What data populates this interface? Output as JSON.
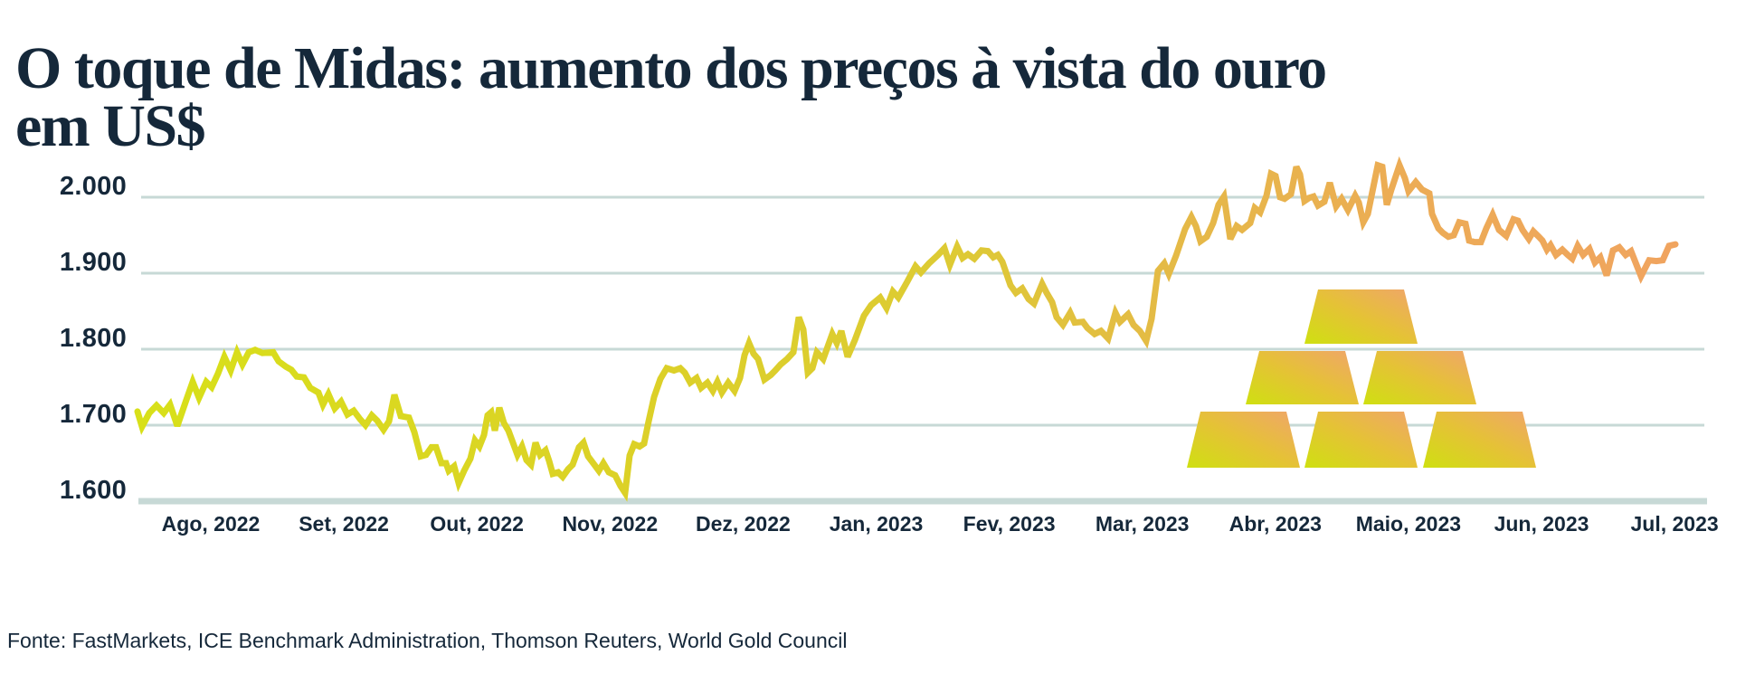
{
  "title": {
    "line1": "O toque de Midas: aumento dos preços à vista do ouro",
    "line2": "em US$",
    "full": "O toque de Midas: aumento dos preços à vista do ouro em US$"
  },
  "source_note": "Fonte: FastMarkets, ICE Benchmark Administration, Thomson Reuters, World Gold Council",
  "colors": {
    "navy": "#15283a",
    "gridline": "#c7d9d6",
    "background": "#ffffff",
    "line_start": "#d8e019",
    "line_mid1": "#dcd028",
    "line_mid2": "#e4bb45",
    "line_end": "#f0a45f",
    "bar_lime": "#cfe011",
    "bar_gold": "#e5c236",
    "bar_orange": "#f0a56b"
  },
  "chart_data": {
    "type": "line",
    "title": "O toque de Midas: aumento dos preços à vista do ouro em US$",
    "xlabel": "",
    "ylabel": "",
    "grid": true,
    "legend": false,
    "ylim": [
      1600,
      2060
    ],
    "y_ticks": [
      "2.000",
      "1.900",
      "1.800",
      "1.700",
      "1.600"
    ],
    "y_tick_values": [
      2000,
      1900,
      1800,
      1700,
      1600
    ],
    "x_labels": [
      "Ago, 2022",
      "Set, 2022",
      "Out, 2022",
      "Nov, 2022",
      "Dez, 2022",
      "Jan, 2023",
      "Fev, 2023",
      "Mar, 2023",
      "Abr, 2023",
      "Maio, 2023",
      "Jun, 2023",
      "Jul, 2023"
    ],
    "series": [
      {
        "points": [
          [
            152,
            1718
          ],
          [
            157,
            1698
          ],
          [
            165,
            1716
          ],
          [
            173,
            1726
          ],
          [
            181,
            1716
          ],
          [
            188,
            1727
          ],
          [
            196,
            1699
          ],
          [
            205,
            1730
          ],
          [
            213,
            1757
          ],
          [
            220,
            1736
          ],
          [
            228,
            1757
          ],
          [
            234,
            1750
          ],
          [
            241,
            1768
          ],
          [
            248,
            1790
          ],
          [
            255,
            1772
          ],
          [
            262,
            1796
          ],
          [
            268,
            1780
          ],
          [
            275,
            1796
          ],
          [
            282,
            1799
          ],
          [
            290,
            1795
          ],
          [
            302,
            1796
          ],
          [
            308,
            1784
          ],
          [
            316,
            1777
          ],
          [
            322,
            1773
          ],
          [
            328,
            1764
          ],
          [
            336,
            1763
          ],
          [
            343,
            1749
          ],
          [
            352,
            1743
          ],
          [
            357,
            1727
          ],
          [
            363,
            1741
          ],
          [
            370,
            1722
          ],
          [
            377,
            1731
          ],
          [
            384,
            1714
          ],
          [
            391,
            1719
          ],
          [
            398,
            1708
          ],
          [
            404,
            1700
          ],
          [
            411,
            1713
          ],
          [
            417,
            1706
          ],
          [
            424,
            1694
          ],
          [
            430,
            1705
          ],
          [
            436,
            1740
          ],
          [
            443,
            1712
          ],
          [
            452,
            1710
          ],
          [
            458,
            1691
          ],
          [
            465,
            1659
          ],
          [
            471,
            1661
          ],
          [
            477,
            1671
          ],
          [
            482,
            1671
          ],
          [
            488,
            1650
          ],
          [
            493,
            1650
          ],
          [
            496,
            1640
          ],
          [
            502,
            1646
          ],
          [
            507,
            1624
          ],
          [
            513,
            1640
          ],
          [
            520,
            1656
          ],
          [
            525,
            1680
          ],
          [
            530,
            1672
          ],
          [
            535,
            1687
          ],
          [
            539,
            1713
          ],
          [
            543,
            1717
          ],
          [
            547,
            1693
          ],
          [
            552,
            1723
          ],
          [
            557,
            1703
          ],
          [
            562,
            1693
          ],
          [
            567,
            1677
          ],
          [
            572,
            1661
          ],
          [
            577,
            1672
          ],
          [
            582,
            1654
          ],
          [
            587,
            1648
          ],
          [
            592,
            1677
          ],
          [
            597,
            1661
          ],
          [
            603,
            1667
          ],
          [
            607,
            1653
          ],
          [
            611,
            1636
          ],
          [
            617,
            1638
          ],
          [
            622,
            1632
          ],
          [
            628,
            1642
          ],
          [
            633,
            1648
          ],
          [
            640,
            1671
          ],
          [
            645,
            1677
          ],
          [
            650,
            1659
          ],
          [
            657,
            1648
          ],
          [
            662,
            1640
          ],
          [
            667,
            1650
          ],
          [
            673,
            1638
          ],
          [
            680,
            1634
          ],
          [
            686,
            1620
          ],
          [
            691,
            1611
          ],
          [
            696,
            1660
          ],
          [
            701,
            1675
          ],
          [
            707,
            1672
          ],
          [
            712,
            1676
          ],
          [
            717,
            1705
          ],
          [
            723,
            1737
          ],
          [
            730,
            1761
          ],
          [
            737,
            1775
          ],
          [
            745,
            1772
          ],
          [
            752,
            1775
          ],
          [
            757,
            1769
          ],
          [
            763,
            1756
          ],
          [
            770,
            1762
          ],
          [
            775,
            1749
          ],
          [
            782,
            1756
          ],
          [
            788,
            1745
          ],
          [
            793,
            1757
          ],
          [
            798,
            1743
          ],
          [
            805,
            1756
          ],
          [
            812,
            1745
          ],
          [
            818,
            1762
          ],
          [
            823,
            1792
          ],
          [
            828,
            1808
          ],
          [
            833,
            1794
          ],
          [
            838,
            1787
          ],
          [
            845,
            1760
          ],
          [
            852,
            1766
          ],
          [
            857,
            1772
          ],
          [
            863,
            1780
          ],
          [
            870,
            1787
          ],
          [
            877,
            1796
          ],
          [
            883,
            1842
          ],
          [
            888,
            1826
          ],
          [
            893,
            1769
          ],
          [
            898,
            1775
          ],
          [
            903,
            1796
          ],
          [
            910,
            1787
          ],
          [
            920,
            1820
          ],
          [
            925,
            1808
          ],
          [
            930,
            1824
          ],
          [
            937,
            1790
          ],
          [
            945,
            1812
          ],
          [
            955,
            1844
          ],
          [
            963,
            1858
          ],
          [
            973,
            1868
          ],
          [
            980,
            1854
          ],
          [
            987,
            1876
          ],
          [
            993,
            1868
          ],
          [
            1003,
            1889
          ],
          [
            1012,
            1909
          ],
          [
            1018,
            1901
          ],
          [
            1027,
            1913
          ],
          [
            1037,
            1924
          ],
          [
            1044,
            1933
          ],
          [
            1050,
            1911
          ],
          [
            1058,
            1935
          ],
          [
            1064,
            1920
          ],
          [
            1070,
            1925
          ],
          [
            1077,
            1919
          ],
          [
            1085,
            1930
          ],
          [
            1092,
            1929
          ],
          [
            1098,
            1921
          ],
          [
            1103,
            1924
          ],
          [
            1108,
            1915
          ],
          [
            1117,
            1884
          ],
          [
            1123,
            1874
          ],
          [
            1130,
            1880
          ],
          [
            1137,
            1866
          ],
          [
            1143,
            1860
          ],
          [
            1152,
            1886
          ],
          [
            1157,
            1874
          ],
          [
            1163,
            1862
          ],
          [
            1168,
            1842
          ],
          [
            1175,
            1832
          ],
          [
            1183,
            1848
          ],
          [
            1188,
            1835
          ],
          [
            1197,
            1836
          ],
          [
            1202,
            1828
          ],
          [
            1210,
            1820
          ],
          [
            1217,
            1824
          ],
          [
            1225,
            1814
          ],
          [
            1233,
            1848
          ],
          [
            1238,
            1836
          ],
          [
            1247,
            1846
          ],
          [
            1253,
            1832
          ],
          [
            1260,
            1824
          ],
          [
            1267,
            1811
          ],
          [
            1273,
            1840
          ],
          [
            1280,
            1903
          ],
          [
            1287,
            1913
          ],
          [
            1292,
            1899
          ],
          [
            1300,
            1923
          ],
          [
            1310,
            1958
          ],
          [
            1317,
            1974
          ],
          [
            1322,
            1962
          ],
          [
            1327,
            1942
          ],
          [
            1334,
            1948
          ],
          [
            1341,
            1966
          ],
          [
            1347,
            1990
          ],
          [
            1353,
            2001
          ],
          [
            1360,
            1945
          ],
          [
            1367,
            1962
          ],
          [
            1373,
            1957
          ],
          [
            1382,
            1966
          ],
          [
            1387,
            1986
          ],
          [
            1393,
            1980
          ],
          [
            1400,
            2002
          ],
          [
            1405,
            2031
          ],
          [
            1410,
            2028
          ],
          [
            1415,
            2000
          ],
          [
            1420,
            1998
          ],
          [
            1427,
            2004
          ],
          [
            1433,
            2040
          ],
          [
            1437,
            2030
          ],
          [
            1442,
            1995
          ],
          [
            1447,
            1999
          ],
          [
            1452,
            2001
          ],
          [
            1457,
            1989
          ],
          [
            1464,
            1994
          ],
          [
            1470,
            2019
          ],
          [
            1477,
            1988
          ],
          [
            1483,
            1998
          ],
          [
            1490,
            1983
          ],
          [
            1498,
            2002
          ],
          [
            1502,
            1993
          ],
          [
            1507,
            1967
          ],
          [
            1512,
            1978
          ],
          [
            1523,
            2042
          ],
          [
            1528,
            2040
          ],
          [
            1533,
            1990
          ],
          [
            1538,
            2010
          ],
          [
            1547,
            2042
          ],
          [
            1553,
            2025
          ],
          [
            1557,
            2008
          ],
          [
            1565,
            2020
          ],
          [
            1572,
            2010
          ],
          [
            1580,
            2005
          ],
          [
            1583,
            1978
          ],
          [
            1590,
            1959
          ],
          [
            1595,
            1953
          ],
          [
            1601,
            1948
          ],
          [
            1607,
            1950
          ],
          [
            1613,
            1967
          ],
          [
            1620,
            1965
          ],
          [
            1624,
            1943
          ],
          [
            1630,
            1941
          ],
          [
            1637,
            1941
          ],
          [
            1643,
            1959
          ],
          [
            1650,
            1977
          ],
          [
            1657,
            1957
          ],
          [
            1665,
            1949
          ],
          [
            1673,
            1971
          ],
          [
            1678,
            1969
          ],
          [
            1683,
            1957
          ],
          [
            1690,
            1945
          ],
          [
            1695,
            1955
          ],
          [
            1701,
            1948
          ],
          [
            1705,
            1943
          ],
          [
            1710,
            1931
          ],
          [
            1714,
            1937
          ],
          [
            1720,
            1924
          ],
          [
            1727,
            1931
          ],
          [
            1733,
            1924
          ],
          [
            1738,
            1919
          ],
          [
            1744,
            1936
          ],
          [
            1750,
            1924
          ],
          [
            1757,
            1932
          ],
          [
            1763,
            1914
          ],
          [
            1769,
            1921
          ],
          [
            1776,
            1897
          ],
          [
            1783,
            1930
          ],
          [
            1790,
            1934
          ],
          [
            1797,
            1924
          ],
          [
            1803,
            1929
          ],
          [
            1814,
            1896
          ],
          [
            1823,
            1917
          ],
          [
            1831,
            1916
          ],
          [
            1838,
            1917
          ],
          [
            1845,
            1936
          ],
          [
            1852,
            1938
          ]
        ]
      }
    ],
    "annotations": [
      "pyramid of six gold bar icons (3-2-1) drawn inside plot between Abr 2023 and Jun 2023, between 1.650 and 1.850"
    ]
  }
}
